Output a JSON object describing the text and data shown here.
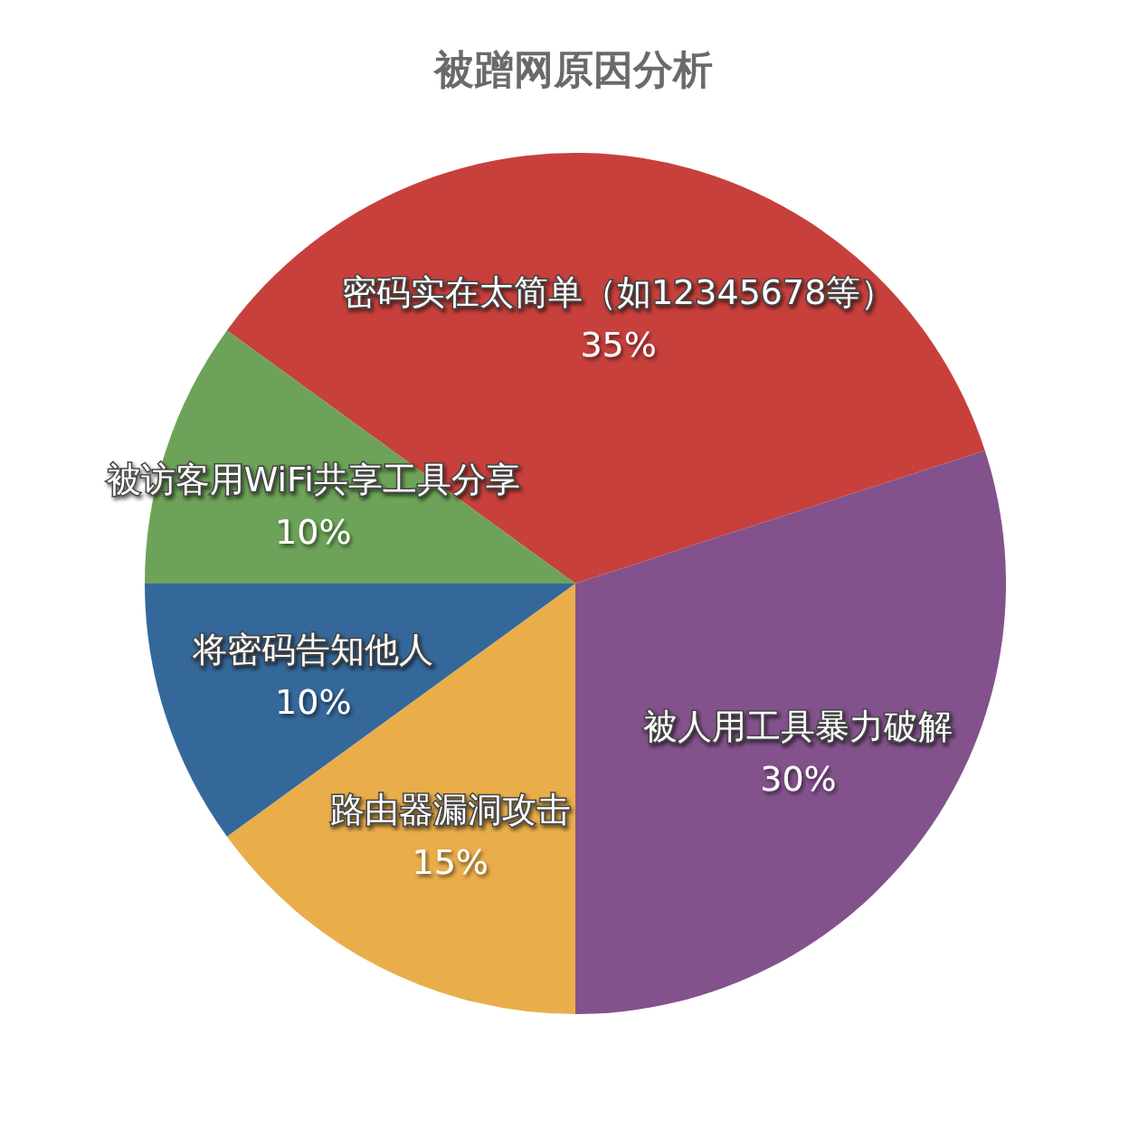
{
  "chart_data": {
    "type": "pie",
    "title": "被蹭网原因分析",
    "categories": [
      "密码实在太简单（如12345678等）",
      "被人用工具暴力破解",
      "路由器漏洞攻击",
      "将密码告知他人",
      "被访客用WiFi共享工具分享"
    ],
    "values": [
      35,
      30,
      15,
      10,
      10
    ],
    "value_labels": [
      "35%",
      "30%",
      "15%",
      "10%",
      "10%"
    ],
    "colors": [
      "#c8403c",
      "#83528c",
      "#e9ae4a",
      "#35689a",
      "#6da358"
    ]
  }
}
